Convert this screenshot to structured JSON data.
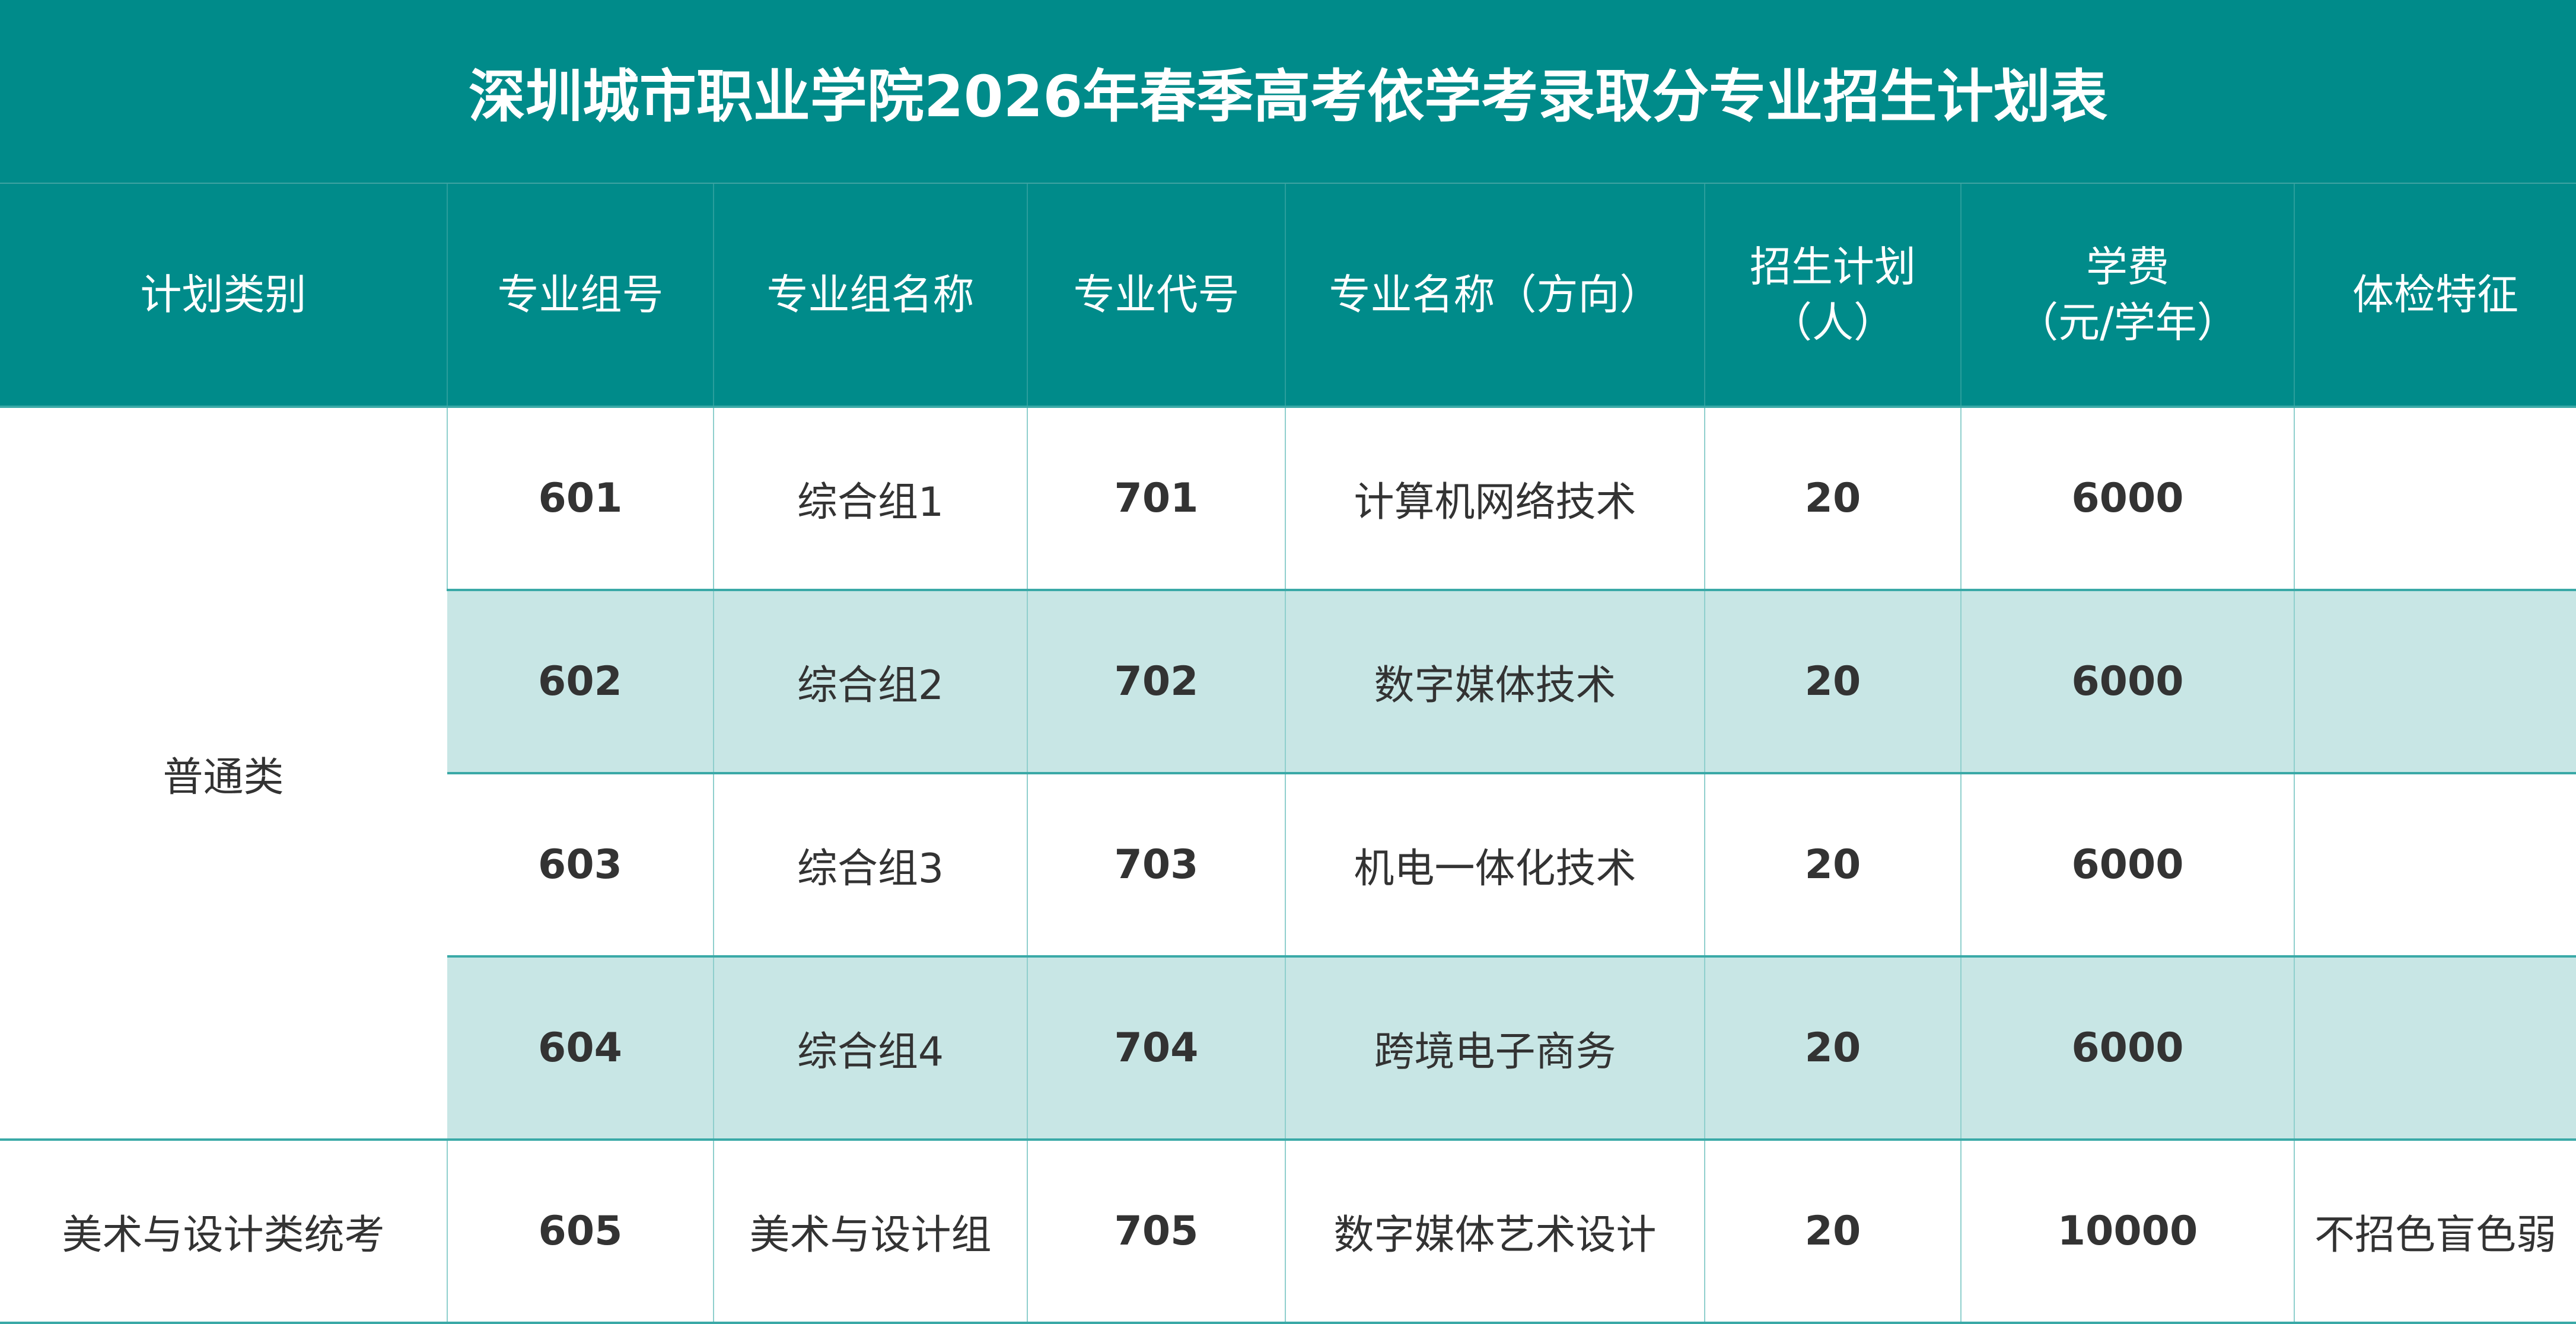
{
  "title": "深圳城市职业学院2026年春季高考依学考录取分专业招生计划表",
  "headers": [
    "计划类别",
    "专业组号",
    "专业组名称",
    "专业代号",
    "专业名称（方向）",
    "招生计划\n（人）",
    "学费\n（元/学年）",
    "体检特征"
  ],
  "colors": {
    "header_bg": "#008b8a",
    "alt_row": "#c8e6e5",
    "text": "#333333"
  },
  "groups": [
    {
      "category": "普通类",
      "rows": [
        {
          "group_no": "601",
          "group_name": "综合组1",
          "code": "701",
          "major": "计算机网络技术",
          "plan": "20",
          "fee": "6000",
          "health": ""
        },
        {
          "group_no": "602",
          "group_name": "综合组2",
          "code": "702",
          "major": "数字媒体技术",
          "plan": "20",
          "fee": "6000",
          "health": ""
        },
        {
          "group_no": "603",
          "group_name": "综合组3",
          "code": "703",
          "major": "机电一体化技术",
          "plan": "20",
          "fee": "6000",
          "health": ""
        },
        {
          "group_no": "604",
          "group_name": "综合组4",
          "code": "704",
          "major": "跨境电子商务",
          "plan": "20",
          "fee": "6000",
          "health": ""
        }
      ]
    },
    {
      "category": "美术与设计类统考",
      "rows": [
        {
          "group_no": "605",
          "group_name": "美术与设计组",
          "code": "705",
          "major": "数字媒体艺术设计",
          "plan": "20",
          "fee": "10000",
          "health": "不招色盲色弱"
        }
      ]
    }
  ]
}
